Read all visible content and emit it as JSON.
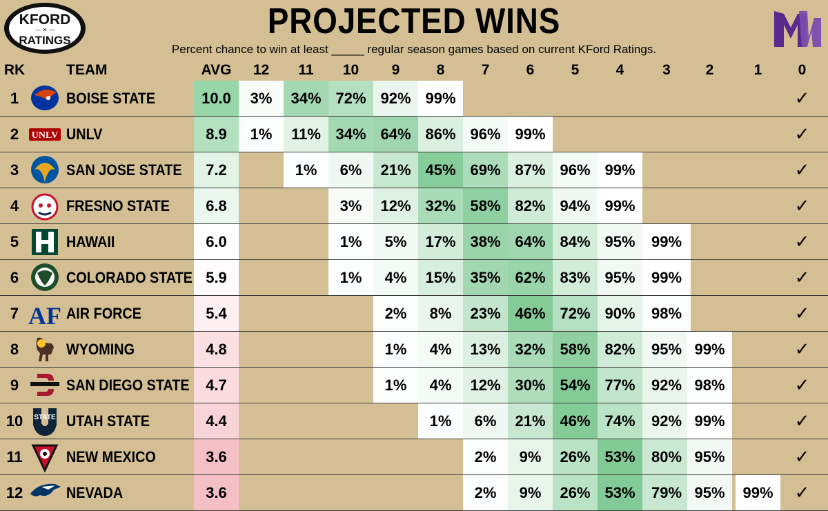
{
  "title": "PROJECTED WINS",
  "subtitle": "Percent chance to win at least _____ regular season games based on current KFord Ratings.",
  "brand": {
    "logo_top": "KFORD",
    "logo_bottom": "RATINGS",
    "logo_mid": "— ✕ —",
    "conference": "MW"
  },
  "colors": {
    "background": "#d3bf93",
    "green_dark": "#5fbb79",
    "red_light": "#f5bfc6"
  },
  "headers": [
    "RK",
    "TEAM",
    "AVG",
    "12",
    "11",
    "10",
    "9",
    "8",
    "7",
    "6",
    "5",
    "4",
    "3",
    "2",
    "1",
    "0"
  ],
  "rows": [
    {
      "rank": "1",
      "team": "BOISE STATE",
      "avg": "10.0",
      "logo": "boise-state-logo",
      "cells": [
        "3%",
        "34%",
        "72%",
        "92%",
        "99%",
        "",
        "",
        "",
        "",
        "",
        "",
        "",
        "✓"
      ]
    },
    {
      "rank": "2",
      "team": "UNLV",
      "avg": "8.9",
      "logo": "unlv-logo",
      "cells": [
        "1%",
        "11%",
        "34%",
        "64%",
        "86%",
        "96%",
        "99%",
        "",
        "",
        "",
        "",
        "",
        "✓"
      ]
    },
    {
      "rank": "3",
      "team": "SAN JOSE STATE",
      "avg": "7.2",
      "logo": "san-jose-state-logo",
      "cells": [
        "",
        "1%",
        "6%",
        "21%",
        "45%",
        "69%",
        "87%",
        "96%",
        "99%",
        "",
        "",
        "",
        "✓"
      ]
    },
    {
      "rank": "4",
      "team": "FRESNO STATE",
      "avg": "6.8",
      "logo": "fresno-state-logo",
      "cells": [
        "",
        "",
        "3%",
        "12%",
        "32%",
        "58%",
        "82%",
        "94%",
        "99%",
        "",
        "",
        "",
        "✓"
      ]
    },
    {
      "rank": "5",
      "team": "HAWAII",
      "avg": "6.0",
      "logo": "hawaii-logo",
      "cells": [
        "",
        "",
        "1%",
        "5%",
        "17%",
        "38%",
        "64%",
        "84%",
        "95%",
        "99%",
        "",
        "",
        "✓"
      ]
    },
    {
      "rank": "6",
      "team": "COLORADO STATE",
      "avg": "5.9",
      "logo": "colorado-state-logo",
      "cells": [
        "",
        "",
        "1%",
        "4%",
        "15%",
        "35%",
        "62%",
        "83%",
        "95%",
        "99%",
        "",
        "",
        "✓"
      ]
    },
    {
      "rank": "7",
      "team": "AIR FORCE",
      "avg": "5.4",
      "logo": "air-force-logo",
      "cells": [
        "",
        "",
        "",
        "2%",
        "8%",
        "23%",
        "46%",
        "72%",
        "90%",
        "98%",
        "",
        "",
        "✓"
      ]
    },
    {
      "rank": "8",
      "team": "WYOMING",
      "avg": "4.8",
      "logo": "wyoming-logo",
      "cells": [
        "",
        "",
        "",
        "1%",
        "4%",
        "13%",
        "32%",
        "58%",
        "82%",
        "95%",
        "99%",
        "",
        "✓"
      ]
    },
    {
      "rank": "9",
      "team": "SAN DIEGO STATE",
      "avg": "4.7",
      "logo": "san-diego-state-logo",
      "cells": [
        "",
        "",
        "",
        "1%",
        "4%",
        "12%",
        "30%",
        "54%",
        "77%",
        "92%",
        "98%",
        "",
        "✓"
      ]
    },
    {
      "rank": "10",
      "team": "UTAH STATE",
      "avg": "4.4",
      "logo": "utah-state-logo",
      "cells": [
        "",
        "",
        "",
        "",
        "1%",
        "6%",
        "21%",
        "46%",
        "74%",
        "92%",
        "99%",
        "",
        "✓"
      ]
    },
    {
      "rank": "11",
      "team": "NEW MEXICO",
      "avg": "3.6",
      "logo": "new-mexico-logo",
      "cells": [
        "",
        "",
        "",
        "",
        "",
        "2%",
        "9%",
        "26%",
        "53%",
        "80%",
        "95%",
        "",
        "✓"
      ]
    },
    {
      "rank": "12",
      "team": "NEVADA",
      "avg": "3.6",
      "logo": "nevada-logo",
      "cells": [
        "",
        "",
        "",
        "",
        "",
        "2%",
        "9%",
        "26%",
        "53%",
        "79%",
        "95%",
        "99%",
        "✓"
      ]
    }
  ]
}
